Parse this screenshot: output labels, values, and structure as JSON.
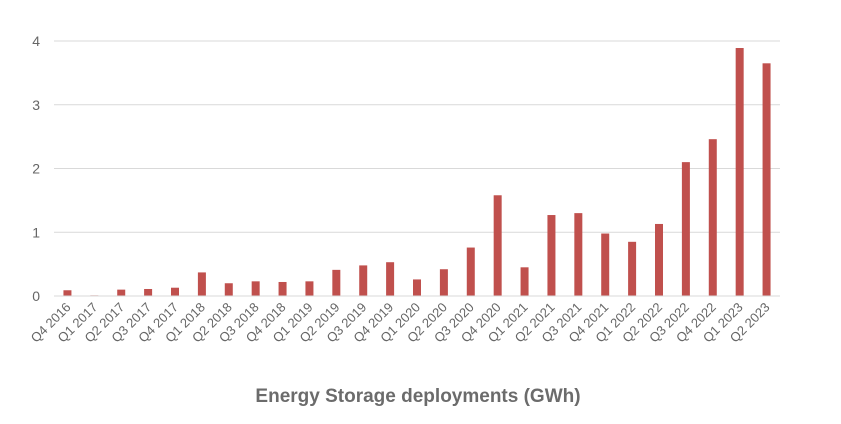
{
  "chart_data": {
    "type": "bar",
    "title": "Energy Storage deployments (GWh)",
    "xlabel": "",
    "ylabel": "",
    "ylim": [
      0,
      4
    ],
    "yticks": [
      "0",
      "1",
      "2",
      "3",
      "4"
    ],
    "grid": true,
    "legend": "none",
    "bar_color": "#c0504d",
    "grid_color": "#d9d9d9",
    "categories": [
      "Q4 2016",
      "Q1 2017",
      "Q2 2017",
      "Q3 2017",
      "Q4 2017",
      "Q1 2018",
      "Q2 2018",
      "Q3 2018",
      "Q4 2018",
      "Q1 2019",
      "Q2 2019",
      "Q3 2019",
      "Q4 2019",
      "Q1 2020",
      "Q2 2020",
      "Q3 2020",
      "Q4 2020",
      "Q1 2021",
      "Q2 2021",
      "Q3 2021",
      "Q4 2021",
      "Q1 2022",
      "Q2 2022",
      "Q3 2022",
      "Q4 2022",
      "Q1 2023",
      "Q2 2023"
    ],
    "values": [
      0.09,
      0.01,
      0.1,
      0.11,
      0.13,
      0.37,
      0.2,
      0.23,
      0.22,
      0.23,
      0.41,
      0.48,
      0.53,
      0.26,
      0.42,
      0.76,
      1.58,
      0.45,
      1.27,
      1.3,
      0.98,
      0.85,
      1.13,
      2.1,
      2.46,
      3.89,
      3.65
    ]
  }
}
